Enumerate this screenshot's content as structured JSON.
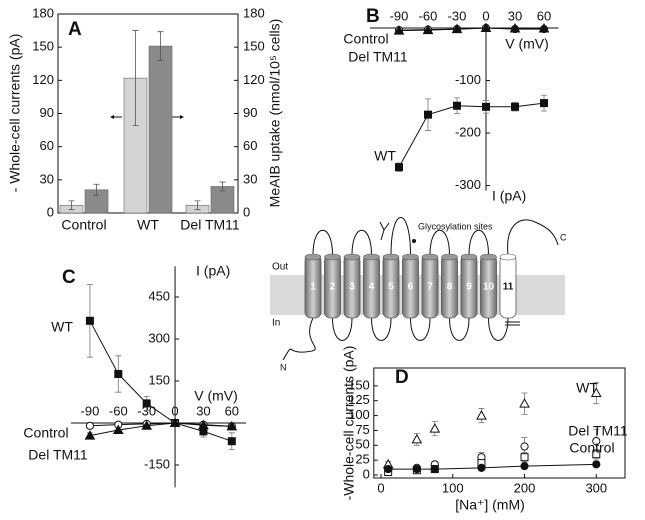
{
  "chart_data": [
    {
      "type": "bar",
      "panel": "A",
      "categories": [
        "Control",
        "WT",
        "Del TM11"
      ],
      "ylabel": "- Whole-cell currents (pA)",
      "y2label": "MeAIB uptake (nmol/10⁵ cells)",
      "ylim": [
        0,
        180
      ],
      "yticks": [
        0,
        30,
        60,
        90,
        120,
        150,
        180
      ],
      "y2lim": [
        0,
        180
      ],
      "y2ticks": [
        0,
        30,
        60,
        90,
        120,
        150,
        180
      ],
      "series": [
        {
          "color": "#d4d4d4",
          "values": [
            7,
            122,
            7
          ],
          "errors": [
            4,
            43,
            4
          ]
        },
        {
          "color": "#8a8a8a",
          "axis": "y2",
          "values": [
            21,
            151,
            24
          ],
          "errors": [
            5,
            13,
            4
          ]
        }
      ]
    },
    {
      "type": "line",
      "panel": "B",
      "xlabel": "V (mV)",
      "ylabel": "I (pA)",
      "x": [
        -90,
        -60,
        -30,
        0,
        30,
        60
      ],
      "xlim": [
        -120,
        75
      ],
      "ylim": [
        -310,
        5
      ],
      "xticks": [
        -90,
        -60,
        -30,
        0,
        30,
        60
      ],
      "yticks": [
        -300,
        -200,
        -100
      ],
      "series": [
        {
          "name": "WT",
          "color": "#111111",
          "marker": "square",
          "fill": true,
          "line": true,
          "values": [
            -265,
            -165,
            -148,
            -150,
            -150,
            -143
          ],
          "errors": [
            8,
            30,
            15,
            12,
            8,
            15
          ]
        },
        {
          "name": "Control",
          "color": "#111111",
          "marker": "circle",
          "fill": false,
          "line": true,
          "values": [
            -4,
            -3,
            -2,
            0,
            -2,
            -2
          ],
          "errors": [
            3,
            3,
            2,
            1,
            2,
            2
          ]
        },
        {
          "name": "Del TM11",
          "color": "#111111",
          "marker": "triangle",
          "fill": true,
          "line": true,
          "values": [
            -5,
            -4,
            -2,
            0,
            -1,
            -1
          ],
          "errors": [
            3,
            2,
            2,
            1,
            1,
            1
          ]
        }
      ]
    },
    {
      "type": "line",
      "panel": "C",
      "xlabel": "V (mV)",
      "ylabel": "I (pA)",
      "x": [
        -90,
        -60,
        -30,
        0,
        30,
        60
      ],
      "xlim": [
        -110,
        75
      ],
      "ylim": [
        -230,
        560
      ],
      "xticks": [
        -90,
        -60,
        -30,
        0,
        30,
        60
      ],
      "yticks": [
        -150,
        150,
        300,
        450
      ],
      "series": [
        {
          "name": "WT",
          "color": "#111111",
          "marker": "square",
          "fill": true,
          "line": true,
          "values": [
            365,
            175,
            70,
            0,
            -30,
            -65
          ],
          "errors": [
            130,
            65,
            25,
            5,
            20,
            30
          ]
        },
        {
          "name": "Control",
          "color": "#111111",
          "marker": "circle",
          "fill": false,
          "line": true,
          "values": [
            -10,
            -6,
            -3,
            0,
            -6,
            -12
          ],
          "errors": [
            6,
            4,
            3,
            2,
            4,
            6
          ]
        },
        {
          "name": "Del TM11",
          "color": "#111111",
          "marker": "triangle",
          "fill": true,
          "line": true,
          "values": [
            -45,
            -25,
            -10,
            0,
            -8,
            -12
          ],
          "errors": [
            10,
            8,
            5,
            2,
            4,
            6
          ]
        }
      ]
    },
    {
      "type": "scatter",
      "panel": "D",
      "xlabel": "[Na⁺] (mM)",
      "ylabel": "-Whole-cell currents (pA)",
      "x": [
        10,
        50,
        75,
        140,
        200,
        300
      ],
      "xlim": [
        -10,
        340
      ],
      "ylim": [
        -5,
        180
      ],
      "xticks": [
        0,
        100,
        200,
        300
      ],
      "yticks": [
        0,
        25,
        50,
        75,
        100,
        125,
        150
      ],
      "series": [
        {
          "name": "WT",
          "color": "#111111",
          "marker": "triangle",
          "fill": false,
          "line": false,
          "values": [
            18,
            60,
            78,
            100,
            120,
            138
          ],
          "errors": [
            5,
            10,
            12,
            12,
            18,
            18
          ]
        },
        {
          "name": "Del TM11",
          "color": "#111111",
          "marker": "circle",
          "fill": false,
          "line": false,
          "values": [
            8,
            12,
            18,
            30,
            48,
            57
          ],
          "errors": [
            3,
            4,
            5,
            8,
            15,
            20
          ]
        },
        {
          "name": "Control",
          "color": "#111111",
          "marker": "square",
          "fill": false,
          "line": false,
          "values": [
            5,
            8,
            10,
            20,
            30,
            35
          ],
          "errors": [
            2,
            3,
            3,
            5,
            8,
            8
          ]
        },
        {
          "color": "#111111",
          "marker": "circle",
          "fill": true,
          "line": true,
          "values": [
            10,
            10,
            10,
            12,
            15,
            18
          ],
          "errors": [
            2,
            2,
            2,
            3,
            3,
            4
          ]
        }
      ]
    }
  ],
  "diagram": {
    "out_label": "Out",
    "in_label": "In",
    "glycosylation": "Glycosylation sites",
    "n_terminus": "N",
    "c_terminus": "C",
    "helices": [
      "1",
      "2",
      "3",
      "4",
      "5",
      "6",
      "7",
      "8",
      "9",
      "10",
      "11"
    ]
  }
}
